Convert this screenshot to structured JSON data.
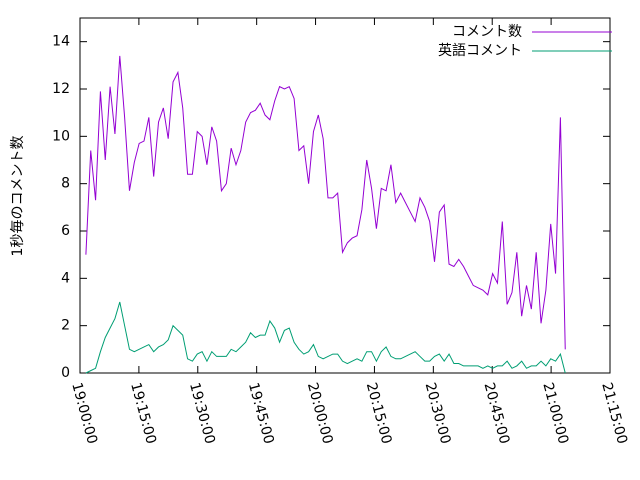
{
  "chart_data": {
    "type": "line",
    "ylabel": "1秒毎のコメント数",
    "x": [
      "19:01:30",
      "19:02:44",
      "19:03:58",
      "19:05:12",
      "19:06:26",
      "19:07:40",
      "19:08:54",
      "19:10:08",
      "19:11:22",
      "19:12:36",
      "19:13:50",
      "19:15:04",
      "19:16:18",
      "19:17:32",
      "19:18:46",
      "19:20:00",
      "19:21:14",
      "19:22:28",
      "19:23:42",
      "19:24:56",
      "19:26:10",
      "19:27:24",
      "19:28:38",
      "19:29:52",
      "19:31:06",
      "19:32:20",
      "19:33:34",
      "19:34:48",
      "19:36:02",
      "19:37:16",
      "19:38:30",
      "19:39:44",
      "19:40:58",
      "19:42:12",
      "19:43:26",
      "19:44:40",
      "19:45:54",
      "19:47:08",
      "19:48:22",
      "19:49:36",
      "19:50:50",
      "19:52:04",
      "19:53:18",
      "19:54:32",
      "19:55:46",
      "19:57:00",
      "19:58:14",
      "19:59:28",
      "20:00:42",
      "20:01:56",
      "20:03:10",
      "20:04:24",
      "20:05:38",
      "20:06:52",
      "20:08:06",
      "20:09:20",
      "20:10:34",
      "20:11:48",
      "20:13:02",
      "20:14:16",
      "20:15:30",
      "20:16:44",
      "20:17:58",
      "20:19:12",
      "20:20:26",
      "20:21:40",
      "20:22:54",
      "20:24:08",
      "20:25:22",
      "20:26:36",
      "20:27:50",
      "20:29:04",
      "20:30:18",
      "20:31:32",
      "20:32:46",
      "20:34:00",
      "20:35:14",
      "20:36:28",
      "20:37:42",
      "20:38:56",
      "20:40:10",
      "20:41:24",
      "20:42:38",
      "20:43:52",
      "20:45:06",
      "20:46:20",
      "20:47:34",
      "20:48:48",
      "20:50:02",
      "20:51:16",
      "20:52:30",
      "20:53:44",
      "20:54:58",
      "20:56:12",
      "20:57:26",
      "20:58:40",
      "20:59:54",
      "21:01:08",
      "21:02:22",
      "21:03:36"
    ],
    "series": [
      {
        "name": "コメント数",
        "color": "#9400d3",
        "values": [
          5.0,
          9.4,
          7.3,
          11.9,
          9.0,
          12.1,
          10.1,
          13.4,
          10.8,
          7.7,
          8.9,
          9.7,
          9.8,
          10.8,
          8.3,
          10.6,
          11.2,
          9.9,
          12.3,
          12.7,
          11.2,
          8.4,
          8.4,
          10.2,
          10.0,
          8.8,
          10.4,
          9.8,
          7.7,
          8.0,
          9.5,
          8.8,
          9.4,
          10.6,
          11.0,
          11.1,
          11.4,
          10.9,
          10.7,
          11.5,
          12.1,
          12.0,
          12.1,
          11.6,
          9.4,
          9.6,
          8.0,
          10.2,
          10.9,
          9.9,
          7.4,
          7.4,
          7.6,
          5.1,
          5.5,
          5.7,
          5.8,
          6.9,
          9.0,
          7.8,
          6.1,
          7.8,
          7.7,
          8.8,
          7.2,
          7.6,
          7.2,
          6.8,
          6.4,
          7.4,
          7.0,
          6.4,
          4.7,
          6.8,
          7.1,
          4.6,
          4.5,
          4.8,
          4.5,
          4.1,
          3.7,
          3.6,
          3.5,
          3.3,
          4.2,
          3.8,
          6.4,
          2.9,
          3.4,
          5.1,
          2.4,
          3.7,
          2.7,
          5.1,
          2.1,
          3.5,
          6.3,
          4.2,
          10.8,
          1.0
        ]
      },
      {
        "name": "英語コメント",
        "color": "#009e73",
        "values": [
          0.0,
          0.1,
          0.2,
          0.9,
          1.5,
          1.9,
          2.3,
          3.0,
          2.0,
          1.0,
          0.9,
          1.0,
          1.1,
          1.2,
          0.9,
          1.1,
          1.2,
          1.4,
          2.0,
          1.8,
          1.6,
          0.6,
          0.5,
          0.8,
          0.9,
          0.5,
          0.9,
          0.7,
          0.7,
          0.7,
          1.0,
          0.9,
          1.1,
          1.3,
          1.7,
          1.5,
          1.6,
          1.6,
          2.2,
          1.9,
          1.3,
          1.8,
          1.9,
          1.3,
          1.0,
          0.8,
          0.9,
          1.2,
          0.7,
          0.6,
          0.7,
          0.8,
          0.8,
          0.5,
          0.4,
          0.5,
          0.6,
          0.5,
          0.9,
          0.9,
          0.5,
          0.9,
          1.1,
          0.7,
          0.6,
          0.6,
          0.7,
          0.8,
          0.9,
          0.7,
          0.5,
          0.5,
          0.7,
          0.8,
          0.5,
          0.8,
          0.4,
          0.4,
          0.3,
          0.3,
          0.3,
          0.3,
          0.2,
          0.3,
          0.2,
          0.3,
          0.3,
          0.5,
          0.2,
          0.3,
          0.5,
          0.2,
          0.3,
          0.3,
          0.5,
          0.3,
          0.6,
          0.5,
          0.8,
          0.0
        ]
      }
    ],
    "xlim": [
      "19:00:00",
      "21:15:00"
    ],
    "xticks": [
      "19:00:00",
      "19:15:00",
      "19:30:00",
      "19:45:00",
      "20:00:00",
      "20:15:00",
      "20:30:00",
      "20:45:00",
      "21:00:00",
      "21:15:00"
    ],
    "ylim": [
      0,
      15
    ],
    "yticks": [
      0,
      2,
      4,
      6,
      8,
      10,
      12,
      14
    ],
    "legend": "upper right"
  }
}
